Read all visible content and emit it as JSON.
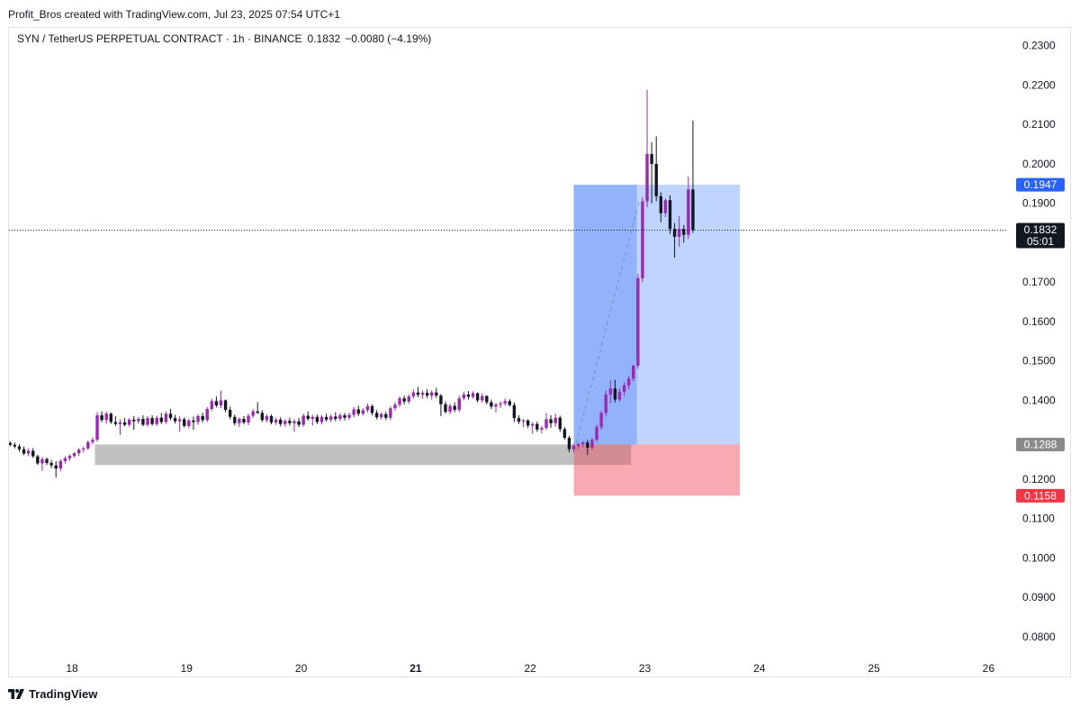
{
  "header": {
    "caption": "Profit_Bros created with TradingView.com, Jul 23, 2025 07:54 UTC+1"
  },
  "footer": {
    "brand": "TradingView",
    "logo_icon": "tradingview-logo-icon"
  },
  "colors": {
    "bull": "#9c27b0",
    "bear": "#131722",
    "profit_zone": "#bcd3ff",
    "entry_zone_dark": "#8eaefc",
    "stop_zone": "#f8a0a8",
    "support_zone": "#bdbdbd",
    "target_badge": "#2962ff",
    "stop_badge": "#f23645",
    "entry_badge": "#8a8a8a",
    "last_badge": "#131722"
  },
  "chart_data": {
    "type": "candlestick",
    "legend": {
      "symbol": "SYN / TetherUS PERPETUAL CONTRACT · 1h · BINANCE",
      "last": "0.1832",
      "change": "−0.0080 (−4.19%)"
    },
    "y_axis": {
      "ylim": [
        0.0745,
        0.2345
      ],
      "ticks": [
        "0.2300",
        "0.2200",
        "0.2100",
        "0.2000",
        "0.1900",
        "0.1700",
        "0.1600",
        "0.1500",
        "0.1400",
        "0.1200",
        "0.1100",
        "0.1000",
        "0.0900",
        "0.0800"
      ]
    },
    "x_axis": {
      "xlim_days": [
        17.45,
        26.17
      ],
      "ticks": [
        {
          "label": "18",
          "day": 18,
          "bold": false
        },
        {
          "label": "19",
          "day": 19,
          "bold": false
        },
        {
          "label": "20",
          "day": 20,
          "bold": false
        },
        {
          "label": "21",
          "day": 21,
          "bold": true
        },
        {
          "label": "22",
          "day": 22,
          "bold": false
        },
        {
          "label": "23",
          "day": 23,
          "bold": false
        },
        {
          "label": "24",
          "day": 24,
          "bold": false
        },
        {
          "label": "25",
          "day": 25,
          "bold": false
        },
        {
          "label": "26",
          "day": 26,
          "bold": false
        }
      ]
    },
    "candles": [
      [
        17.46,
        0.1292,
        0.1296,
        0.1283,
        0.1287
      ],
      [
        17.5,
        0.1287,
        0.1293,
        0.1278,
        0.1283
      ],
      [
        17.54,
        0.1283,
        0.1289,
        0.127,
        0.1276
      ],
      [
        17.58,
        0.1276,
        0.1283,
        0.1261,
        0.1265
      ],
      [
        17.62,
        0.1265,
        0.1278,
        0.1258,
        0.1272
      ],
      [
        17.66,
        0.1272,
        0.1279,
        0.1254,
        0.1258
      ],
      [
        17.7,
        0.1258,
        0.1262,
        0.1236,
        0.124
      ],
      [
        17.74,
        0.124,
        0.1256,
        0.1221,
        0.1251
      ],
      [
        17.78,
        0.1251,
        0.1255,
        0.1236,
        0.1241
      ],
      [
        17.82,
        0.1241,
        0.1249,
        0.1228,
        0.1235
      ],
      [
        17.86,
        0.1235,
        0.1246,
        0.1204,
        0.1227
      ],
      [
        17.9,
        0.1227,
        0.1251,
        0.122,
        0.1246
      ],
      [
        17.94,
        0.1246,
        0.1258,
        0.1239,
        0.1253
      ],
      [
        17.98,
        0.1253,
        0.1263,
        0.1247,
        0.1259
      ],
      [
        18.02,
        0.1259,
        0.1269,
        0.1255,
        0.1266
      ],
      [
        18.06,
        0.1266,
        0.1279,
        0.1259,
        0.1275
      ],
      [
        18.1,
        0.1275,
        0.1283,
        0.1267,
        0.1278
      ],
      [
        18.14,
        0.1278,
        0.1299,
        0.1274,
        0.1294
      ],
      [
        18.18,
        0.1294,
        0.1306,
        0.1288,
        0.13
      ],
      [
        18.22,
        0.13,
        0.137,
        0.1295,
        0.1362
      ],
      [
        18.26,
        0.1362,
        0.1372,
        0.1345,
        0.135
      ],
      [
        18.3,
        0.135,
        0.1372,
        0.134,
        0.1366
      ],
      [
        18.34,
        0.1366,
        0.1369,
        0.134,
        0.1345
      ],
      [
        18.38,
        0.1345,
        0.136,
        0.1335,
        0.134
      ],
      [
        18.42,
        0.134,
        0.1352,
        0.1312,
        0.1344
      ],
      [
        18.46,
        0.1344,
        0.1355,
        0.1334,
        0.1338
      ],
      [
        18.5,
        0.1338,
        0.1355,
        0.1333,
        0.1351
      ],
      [
        18.54,
        0.1351,
        0.136,
        0.1325,
        0.1347
      ],
      [
        18.58,
        0.1347,
        0.1358,
        0.134,
        0.1353
      ],
      [
        18.62,
        0.1353,
        0.1362,
        0.1334,
        0.1338
      ],
      [
        18.66,
        0.1338,
        0.136,
        0.1333,
        0.1355
      ],
      [
        18.7,
        0.1355,
        0.1362,
        0.1336,
        0.134
      ],
      [
        18.74,
        0.134,
        0.1361,
        0.1335,
        0.1356
      ],
      [
        18.78,
        0.1356,
        0.1368,
        0.134,
        0.1345
      ],
      [
        18.82,
        0.1345,
        0.1372,
        0.134,
        0.1366
      ],
      [
        18.86,
        0.1366,
        0.1378,
        0.135,
        0.1355
      ],
      [
        18.9,
        0.1355,
        0.1363,
        0.1341,
        0.1347
      ],
      [
        18.94,
        0.1347,
        0.136,
        0.132,
        0.1352
      ],
      [
        18.98,
        0.1352,
        0.1357,
        0.1331,
        0.1335
      ],
      [
        19.02,
        0.1335,
        0.1353,
        0.1329,
        0.1349
      ],
      [
        19.06,
        0.1349,
        0.1359,
        0.1325,
        0.1345
      ],
      [
        19.1,
        0.1345,
        0.1365,
        0.1338,
        0.136
      ],
      [
        19.14,
        0.136,
        0.1368,
        0.1344,
        0.135
      ],
      [
        19.18,
        0.135,
        0.1383,
        0.1345,
        0.1378
      ],
      [
        19.22,
        0.1378,
        0.1404,
        0.1373,
        0.1398
      ],
      [
        19.26,
        0.1398,
        0.141,
        0.1382,
        0.1387
      ],
      [
        19.3,
        0.1387,
        0.1425,
        0.138,
        0.14
      ],
      [
        19.34,
        0.14,
        0.1402,
        0.137,
        0.1376
      ],
      [
        19.38,
        0.1376,
        0.1384,
        0.1352,
        0.1358
      ],
      [
        19.42,
        0.1358,
        0.1364,
        0.1336,
        0.1342
      ],
      [
        19.46,
        0.1342,
        0.1357,
        0.1332,
        0.1353
      ],
      [
        19.5,
        0.1353,
        0.136,
        0.1339,
        0.1344
      ],
      [
        19.54,
        0.1344,
        0.1366,
        0.1337,
        0.1361
      ],
      [
        19.58,
        0.1361,
        0.1378,
        0.1355,
        0.1372
      ],
      [
        19.62,
        0.1372,
        0.1395,
        0.1366,
        0.1368
      ],
      [
        19.66,
        0.1368,
        0.1375,
        0.1345,
        0.135
      ],
      [
        19.7,
        0.135,
        0.1365,
        0.1344,
        0.136
      ],
      [
        19.74,
        0.136,
        0.1364,
        0.1339,
        0.1344
      ],
      [
        19.78,
        0.1344,
        0.1356,
        0.1338,
        0.1351
      ],
      [
        19.82,
        0.1351,
        0.1357,
        0.1334,
        0.134
      ],
      [
        19.86,
        0.134,
        0.1352,
        0.1333,
        0.1348
      ],
      [
        19.9,
        0.1348,
        0.1356,
        0.1336,
        0.1342
      ],
      [
        19.94,
        0.1342,
        0.1352,
        0.132,
        0.1347
      ],
      [
        19.98,
        0.1347,
        0.1355,
        0.1332,
        0.1338
      ],
      [
        20.02,
        0.1338,
        0.1366,
        0.1333,
        0.1361
      ],
      [
        20.06,
        0.1361,
        0.1372,
        0.1348,
        0.1353
      ],
      [
        20.1,
        0.1353,
        0.1363,
        0.1336,
        0.1358
      ],
      [
        20.14,
        0.1358,
        0.1364,
        0.134,
        0.1345
      ],
      [
        20.18,
        0.1345,
        0.1363,
        0.1339,
        0.1358
      ],
      [
        20.22,
        0.1358,
        0.1366,
        0.1346,
        0.1351
      ],
      [
        20.26,
        0.1351,
        0.1364,
        0.1345,
        0.1359
      ],
      [
        20.3,
        0.1359,
        0.137,
        0.1347,
        0.1353
      ],
      [
        20.34,
        0.1353,
        0.1367,
        0.1347,
        0.1362
      ],
      [
        20.38,
        0.1362,
        0.1368,
        0.1349,
        0.1356
      ],
      [
        20.42,
        0.1356,
        0.1369,
        0.135,
        0.1363
      ],
      [
        20.46,
        0.1363,
        0.1383,
        0.1357,
        0.1377
      ],
      [
        20.5,
        0.1377,
        0.1386,
        0.136,
        0.1366
      ],
      [
        20.54,
        0.1366,
        0.138,
        0.1361,
        0.1375
      ],
      [
        20.58,
        0.1375,
        0.1392,
        0.1369,
        0.1385
      ],
      [
        20.62,
        0.1385,
        0.139,
        0.1362,
        0.1368
      ],
      [
        20.66,
        0.1368,
        0.1375,
        0.1352,
        0.1357
      ],
      [
        20.7,
        0.1357,
        0.137,
        0.1351,
        0.1365
      ],
      [
        20.74,
        0.1365,
        0.1371,
        0.135,
        0.1356
      ],
      [
        20.78,
        0.1356,
        0.1385,
        0.135,
        0.138
      ],
      [
        20.82,
        0.138,
        0.1395,
        0.1374,
        0.1389
      ],
      [
        20.86,
        0.1389,
        0.141,
        0.1383,
        0.1405
      ],
      [
        20.9,
        0.1405,
        0.1412,
        0.139,
        0.1397
      ],
      [
        20.94,
        0.1397,
        0.1415,
        0.1391,
        0.141
      ],
      [
        20.98,
        0.141,
        0.1428,
        0.1404,
        0.142
      ],
      [
        21.02,
        0.142,
        0.1434,
        0.1408,
        0.1414
      ],
      [
        21.06,
        0.1414,
        0.1425,
        0.1404,
        0.1419
      ],
      [
        21.1,
        0.1419,
        0.1428,
        0.1406,
        0.1412
      ],
      [
        21.14,
        0.1412,
        0.1426,
        0.1402,
        0.142
      ],
      [
        21.18,
        0.142,
        0.1432,
        0.1406,
        0.1412
      ],
      [
        21.22,
        0.1412,
        0.1416,
        0.136,
        0.139
      ],
      [
        21.26,
        0.139,
        0.1397,
        0.1366,
        0.1371
      ],
      [
        21.3,
        0.1371,
        0.1392,
        0.1365,
        0.1386
      ],
      [
        21.34,
        0.1386,
        0.1395,
        0.137,
        0.1376
      ],
      [
        21.38,
        0.1376,
        0.1412,
        0.137,
        0.1405
      ],
      [
        21.42,
        0.1405,
        0.1422,
        0.14,
        0.1415
      ],
      [
        21.46,
        0.1415,
        0.1424,
        0.1402,
        0.1409
      ],
      [
        21.5,
        0.1409,
        0.1423,
        0.1404,
        0.1418
      ],
      [
        21.54,
        0.1418,
        0.142,
        0.1395,
        0.14
      ],
      [
        21.58,
        0.14,
        0.1418,
        0.1394,
        0.1411
      ],
      [
        21.62,
        0.1411,
        0.1413,
        0.139,
        0.1395
      ],
      [
        21.66,
        0.1395,
        0.1402,
        0.1378,
        0.1384
      ],
      [
        21.7,
        0.1384,
        0.1394,
        0.1369,
        0.1389
      ],
      [
        21.74,
        0.1389,
        0.1398,
        0.138,
        0.1392
      ],
      [
        21.78,
        0.1392,
        0.1405,
        0.1386,
        0.1398
      ],
      [
        21.82,
        0.1398,
        0.1403,
        0.1384,
        0.1388
      ],
      [
        21.86,
        0.1388,
        0.1395,
        0.1345,
        0.1355
      ],
      [
        21.9,
        0.1355,
        0.1362,
        0.134,
        0.1346
      ],
      [
        21.94,
        0.1346,
        0.1353,
        0.1332,
        0.1349
      ],
      [
        21.98,
        0.1349,
        0.1352,
        0.133,
        0.1336
      ],
      [
        22.02,
        0.1336,
        0.1345,
        0.1315,
        0.134
      ],
      [
        22.06,
        0.134,
        0.1346,
        0.132,
        0.1326
      ],
      [
        22.1,
        0.1326,
        0.1335,
        0.1316,
        0.133
      ],
      [
        22.14,
        0.133,
        0.1368,
        0.1325,
        0.1352
      ],
      [
        22.18,
        0.1352,
        0.1362,
        0.133,
        0.1342
      ],
      [
        22.22,
        0.1342,
        0.1366,
        0.1333,
        0.1356
      ],
      [
        22.26,
        0.1356,
        0.1361,
        0.132,
        0.1327
      ],
      [
        22.3,
        0.1327,
        0.1332,
        0.13,
        0.1305
      ],
      [
        22.34,
        0.1305,
        0.131,
        0.1268,
        0.1276
      ],
      [
        22.38,
        0.1276,
        0.129,
        0.1268,
        0.1285
      ],
      [
        22.42,
        0.1285,
        0.1292,
        0.1276,
        0.1289
      ],
      [
        22.46,
        0.1289,
        0.1297,
        0.1281,
        0.1293
      ],
      [
        22.5,
        0.1293,
        0.13,
        0.1262,
        0.128
      ],
      [
        22.54,
        0.128,
        0.1305,
        0.1275,
        0.13
      ],
      [
        22.58,
        0.13,
        0.1338,
        0.1294,
        0.1332
      ],
      [
        22.62,
        0.1332,
        0.1375,
        0.1326,
        0.1368
      ],
      [
        22.66,
        0.1368,
        0.1425,
        0.1359,
        0.1415
      ],
      [
        22.7,
        0.1415,
        0.145,
        0.1393,
        0.143
      ],
      [
        22.74,
        0.143,
        0.1452,
        0.1395,
        0.1402
      ],
      [
        22.78,
        0.1402,
        0.143,
        0.1396,
        0.1422
      ],
      [
        22.82,
        0.1422,
        0.1446,
        0.141,
        0.1438
      ],
      [
        22.86,
        0.1438,
        0.1462,
        0.1428,
        0.1455
      ],
      [
        22.9,
        0.1455,
        0.149,
        0.1448,
        0.1488
      ],
      [
        22.94,
        0.1488,
        0.172,
        0.148,
        0.171
      ],
      [
        22.98,
        0.171,
        0.1915,
        0.17,
        0.1905
      ],
      [
        23.02,
        0.1905,
        0.2188,
        0.189,
        0.2025
      ],
      [
        23.06,
        0.2025,
        0.2055,
        0.19,
        0.2
      ],
      [
        23.1,
        0.2,
        0.207,
        0.1905,
        0.1918
      ],
      [
        23.14,
        0.1918,
        0.1928,
        0.1852,
        0.1875
      ],
      [
        23.18,
        0.1875,
        0.1912,
        0.1865,
        0.1908
      ],
      [
        23.22,
        0.1908,
        0.192,
        0.1822,
        0.1835
      ],
      [
        23.26,
        0.1835,
        0.185,
        0.1762,
        0.1815
      ],
      [
        23.3,
        0.1815,
        0.1868,
        0.179,
        0.1835
      ],
      [
        23.34,
        0.1835,
        0.1845,
        0.18,
        0.182
      ],
      [
        23.38,
        0.182,
        0.1968,
        0.181,
        0.1935
      ],
      [
        23.42,
        0.1935,
        0.211,
        0.1825,
        0.1832
      ]
    ],
    "position_tool": {
      "direction": "long",
      "day_start": 22.38,
      "day_end": 23.83,
      "day_filled": 22.93,
      "entry": 0.1288,
      "target": 0.1947,
      "stop": 0.1158
    },
    "support_zone": {
      "day_start": 18.2,
      "day_end": 22.88,
      "price_high": 0.1288,
      "price_low": 0.1236
    },
    "trend_line": {
      "from": {
        "day": 22.4,
        "price": 0.1291
      },
      "to": {
        "day": 22.95,
        "price": 0.1905
      }
    },
    "current_price_line": {
      "price": 0.1832
    },
    "price_badges": [
      {
        "key": "target",
        "label": "0.1947",
        "price": 0.1947,
        "color_key": "target_badge"
      },
      {
        "key": "last",
        "label": "0.1832",
        "sublabel": "05:01",
        "price": 0.1832,
        "color_key": "last_badge"
      },
      {
        "key": "entry",
        "label": "0.1288",
        "price": 0.1288,
        "color_key": "entry_badge"
      },
      {
        "key": "stop",
        "label": "0.1158",
        "price": 0.1158,
        "color_key": "stop_badge"
      }
    ]
  }
}
